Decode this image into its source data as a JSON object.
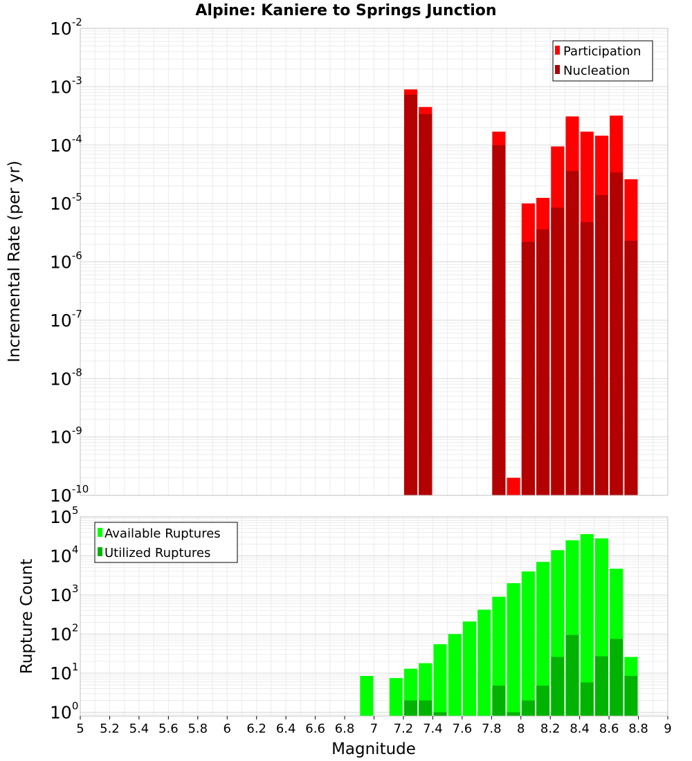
{
  "chart_data": [
    {
      "type": "bar",
      "title": "Alpine: Kaniere to Springs Junction",
      "ylabel": "Incremental Rate (per yr)",
      "xlabel": "",
      "yscale": "log",
      "ylim": [
        1e-10,
        0.01
      ],
      "xlim": [
        5,
        9
      ],
      "grid": true,
      "legend_position": "top-right",
      "bar_width": 0.09,
      "y_ticks": [
        {
          "base": "10",
          "exp": "-10",
          "value": 1e-10
        },
        {
          "base": "10",
          "exp": "-9",
          "value": 1e-09
        },
        {
          "base": "10",
          "exp": "-8",
          "value": 1e-08
        },
        {
          "base": "10",
          "exp": "-7",
          "value": 1e-07
        },
        {
          "base": "10",
          "exp": "-6",
          "value": 1e-06
        },
        {
          "base": "10",
          "exp": "-5",
          "value": 1e-05
        },
        {
          "base": "10",
          "exp": "-4",
          "value": 0.0001
        },
        {
          "base": "10",
          "exp": "-3",
          "value": 0.001
        },
        {
          "base": "10",
          "exp": "-2",
          "value": 0.01
        }
      ],
      "series": [
        {
          "name": "Participation",
          "color": "#ff0000",
          "x": [
            7.25,
            7.35,
            7.85,
            7.95,
            8.05,
            8.15,
            8.25,
            8.35,
            8.45,
            8.55,
            8.65,
            8.75
          ],
          "values": [
            0.0009,
            0.00045,
            0.00017,
            2e-10,
            1e-05,
            1.25e-05,
            9.5e-05,
            0.00031,
            0.00017,
            0.000145,
            0.00032,
            2.6e-05
          ]
        },
        {
          "name": "Nucleation",
          "color": "#b30000",
          "x": [
            7.25,
            7.35,
            7.85,
            8.05,
            8.15,
            8.25,
            8.35,
            8.45,
            8.55,
            8.65,
            8.75
          ],
          "values": [
            0.00073,
            0.00034,
            0.0001,
            2.2e-06,
            3.6e-06,
            8.5e-06,
            3.6e-05,
            4.8e-06,
            1.4e-05,
            3.4e-05,
            2.3e-06
          ]
        }
      ]
    },
    {
      "type": "bar",
      "title": "",
      "ylabel": "Rupture Count",
      "xlabel": "Magnitude",
      "yscale": "log",
      "ylim": [
        0.8,
        100000.0
      ],
      "xlim": [
        5,
        9
      ],
      "grid": true,
      "legend_position": "top-left",
      "bar_width": 0.09,
      "y_ticks": [
        {
          "base": "10",
          "exp": "0",
          "value": 1
        },
        {
          "base": "10",
          "exp": "1",
          "value": 10
        },
        {
          "base": "10",
          "exp": "2",
          "value": 100
        },
        {
          "base": "10",
          "exp": "3",
          "value": 1000
        },
        {
          "base": "10",
          "exp": "4",
          "value": 10000
        },
        {
          "base": "10",
          "exp": "5",
          "value": 100000
        }
      ],
      "x_tick_labels": [
        "5",
        "5.2",
        "5.4",
        "5.6",
        "5.8",
        "6",
        "6.2",
        "6.4",
        "6.6",
        "6.8",
        "7",
        "7.2",
        "7.4",
        "7.6",
        "7.8",
        "8",
        "8.2",
        "8.4",
        "8.6",
        "8.8",
        "9"
      ],
      "x_ticks": [
        5,
        5.2,
        5.4,
        5.6,
        5.8,
        6,
        6.2,
        6.4,
        6.6,
        6.8,
        7,
        7.2,
        7.4,
        7.6,
        7.8,
        8,
        8.2,
        8.4,
        8.6,
        8.8,
        9
      ],
      "series": [
        {
          "name": "Available Ruptures",
          "color": "#00ff00",
          "x": [
            6.95,
            7.15,
            7.25,
            7.35,
            7.45,
            7.55,
            7.65,
            7.75,
            7.85,
            7.95,
            8.05,
            8.15,
            8.25,
            8.35,
            8.45,
            8.55,
            8.65,
            8.75
          ],
          "values": [
            8.5,
            7.5,
            13,
            18,
            55,
            100,
            210,
            420,
            900,
            2000,
            4000,
            7000,
            14000,
            25000,
            36000,
            28000,
            4700,
            26
          ]
        },
        {
          "name": "Utilized Ruptures",
          "color": "#00b300",
          "x": [
            7.25,
            7.35,
            7.45,
            7.85,
            7.95,
            8.05,
            8.15,
            8.25,
            8.35,
            8.45,
            8.55,
            8.65,
            8.75
          ],
          "values": [
            2,
            2,
            1,
            4.8,
            1,
            2,
            4.8,
            26,
            95,
            5.8,
            27,
            75,
            8.5
          ]
        }
      ]
    }
  ]
}
